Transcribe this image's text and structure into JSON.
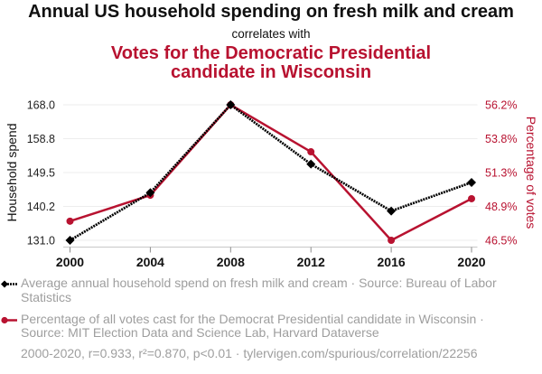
{
  "header": {
    "title": "Annual US household spending on fresh milk and cream",
    "subtitle": "correlates with",
    "title2": "Votes for the Democratic Presidential candidate in Wisconsin"
  },
  "colors": {
    "series1": "#000000",
    "series2": "#b81230",
    "title_text": "#111111",
    "legend_text": "#9e9e9e",
    "gridline": "#ededed",
    "axis_line": "#c8c8c8",
    "tick_mark": "#8a8a8a",
    "tick_label": "#222222"
  },
  "chart_data": {
    "type": "line",
    "title": "Annual US household spending on fresh milk and cream correlates with Votes for the Democratic Presidential candidate in Wisconsin",
    "x": [
      2000,
      2004,
      2008,
      2012,
      2016,
      2020
    ],
    "xticks": [
      "2000",
      "2004",
      "2008",
      "2012",
      "2016",
      "2020"
    ],
    "xlim": [
      2000,
      2020
    ],
    "xlabel": "",
    "ylabel_left": "Household spend",
    "ylabel_right": "Percentage of votes",
    "yticks_left": [
      "168.0",
      "158.8",
      "149.5",
      "140.2",
      "131.0"
    ],
    "yticks_right": [
      "56.2%",
      "53.8%",
      "51.3%",
      "48.9%",
      "46.5%"
    ],
    "ylim_left": [
      131.0,
      168.0
    ],
    "ylim_right": [
      46.45,
      56.22
    ],
    "grid": true,
    "legend_placement": "bottom-left",
    "series": [
      {
        "name": "Average annual household spend on fresh milk and cream",
        "axis": "left",
        "marker": "diamond",
        "line_style": "dotted",
        "color": "#000000",
        "values": [
          131.0,
          144.0,
          168.0,
          151.8,
          139.0,
          146.8
        ]
      },
      {
        "name": "Percentage of all votes cast for the Democrat Presidential candidate in Wisconsin",
        "axis": "right",
        "marker": "circle",
        "line_style": "solid",
        "color": "#b81230",
        "values": [
          47.83,
          49.7,
          56.22,
          52.83,
          46.45,
          49.45
        ]
      }
    ]
  },
  "legend": {
    "items": [
      {
        "marker": "diamond-dotted-line-icon",
        "text": "Average annual household spend on fresh milk and cream · Source: Bureau of Labor Statistics"
      },
      {
        "marker": "circle-solid-line-icon",
        "text": "Percentage of all votes cast for the Democrat Presidential candidate in Wisconsin · Source: MIT Election Data and Science Lab, Harvard Dataverse"
      }
    ],
    "stats": "2000-2020, r=0.933, r²=0.870, p<0.01 · tylervigen.com/spurious/correlation/22256"
  }
}
